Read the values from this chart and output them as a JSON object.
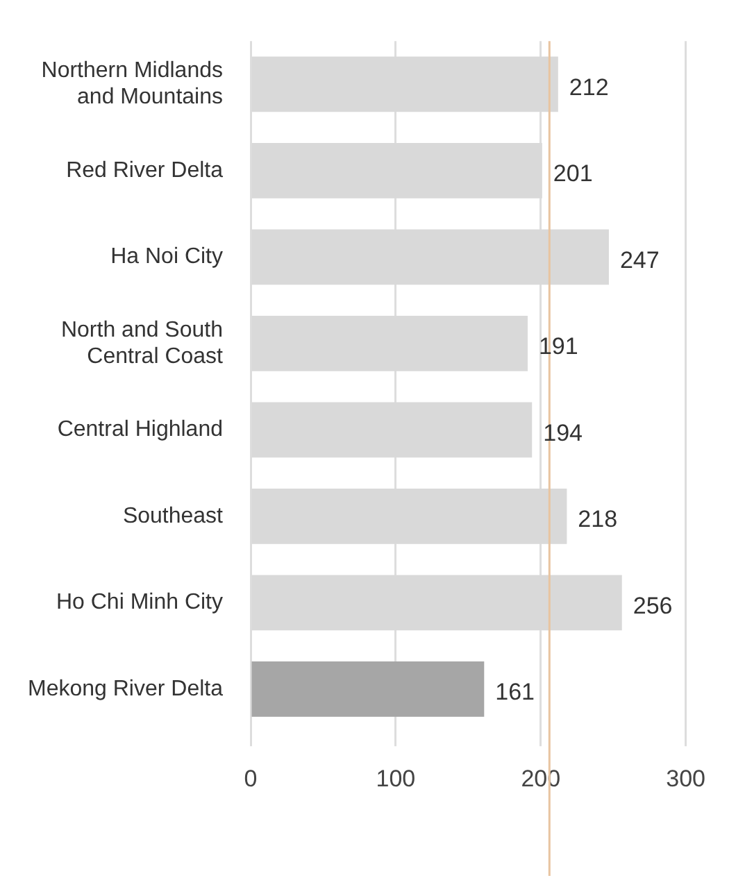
{
  "chart_data": {
    "type": "bar",
    "orientation": "horizontal",
    "categories": [
      "Northern Midlands and Mountains",
      "Red River Delta",
      "Ha Noi City",
      "North and South Central Coast",
      "Central Highland",
      "Southeast",
      "Ho Chi Minh City",
      "Mekong River Delta"
    ],
    "values": [
      212,
      201,
      247,
      191,
      194,
      218,
      256,
      161
    ],
    "colors": [
      "#d9d9d9",
      "#d9d9d9",
      "#d9d9d9",
      "#d9d9d9",
      "#d9d9d9",
      "#d9d9d9",
      "#d9d9d9",
      "#a6a6a6"
    ],
    "xlim": [
      0,
      300
    ],
    "xticks": [
      0,
      100,
      200,
      300
    ],
    "grid": "x",
    "data_labels": true,
    "ref_lines": [
      {
        "axis": "x",
        "value": 206,
        "color": "#e8c4a0"
      }
    ]
  }
}
